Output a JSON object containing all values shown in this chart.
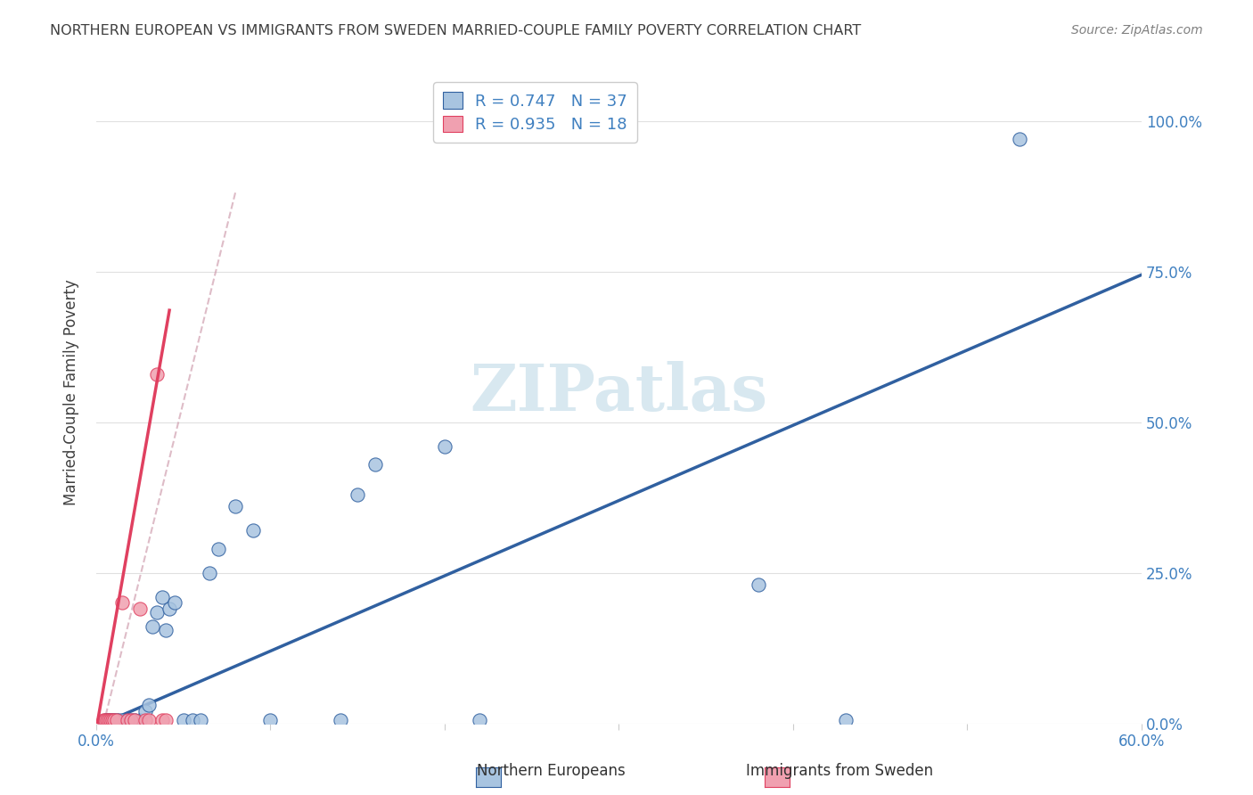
{
  "title": "NORTHERN EUROPEAN VS IMMIGRANTS FROM SWEDEN MARRIED-COUPLE FAMILY POVERTY CORRELATION CHART",
  "source": "Source: ZipAtlas.com",
  "xlabel_label": "",
  "ylabel_label": "Married-Couple Family Poverty",
  "watermark": "ZIPatlas",
  "blue_label": "Northern Europeans",
  "pink_label": "Immigrants from Sweden",
  "blue_R": "0.747",
  "blue_N": "37",
  "pink_R": "0.935",
  "pink_N": "18",
  "xlim": [
    0,
    0.6
  ],
  "ylim": [
    0,
    1.1
  ],
  "xticks": [
    0.0,
    0.1,
    0.2,
    0.3,
    0.4,
    0.5,
    0.6
  ],
  "yticks": [
    0.0,
    0.25,
    0.5,
    0.75,
    1.0
  ],
  "ytick_labels": [
    "0.0%",
    "25.0%",
    "50.0%",
    "75.0%",
    "100.0%"
  ],
  "xtick_labels": [
    "0.0%",
    "",
    "",
    "",
    "",
    "",
    "60.0%"
  ],
  "blue_scatter_x": [
    0.005,
    0.006,
    0.007,
    0.008,
    0.009,
    0.01,
    0.012,
    0.013,
    0.015,
    0.018,
    0.02,
    0.022,
    0.025,
    0.028,
    0.03,
    0.032,
    0.035,
    0.038,
    0.04,
    0.042,
    0.045,
    0.05,
    0.055,
    0.06,
    0.065,
    0.07,
    0.08,
    0.09,
    0.1,
    0.14,
    0.15,
    0.16,
    0.2,
    0.22,
    0.38,
    0.43,
    0.53
  ],
  "blue_scatter_y": [
    0.005,
    0.005,
    0.005,
    0.005,
    0.005,
    0.005,
    0.005,
    0.005,
    0.005,
    0.005,
    0.005,
    0.005,
    0.005,
    0.02,
    0.03,
    0.16,
    0.185,
    0.21,
    0.155,
    0.19,
    0.2,
    0.005,
    0.005,
    0.005,
    0.25,
    0.29,
    0.36,
    0.32,
    0.005,
    0.005,
    0.38,
    0.43,
    0.46,
    0.005,
    0.23,
    0.005,
    0.97
  ],
  "pink_scatter_x": [
    0.004,
    0.005,
    0.006,
    0.007,
    0.008,
    0.009,
    0.01,
    0.012,
    0.015,
    0.018,
    0.02,
    0.022,
    0.025,
    0.028,
    0.03,
    0.035,
    0.038,
    0.04
  ],
  "pink_scatter_y": [
    0.005,
    0.005,
    0.005,
    0.005,
    0.005,
    0.005,
    0.005,
    0.005,
    0.2,
    0.005,
    0.005,
    0.005,
    0.19,
    0.005,
    0.005,
    0.58,
    0.005,
    0.005
  ],
  "blue_color": "#a8c4e0",
  "blue_line_color": "#3060a0",
  "pink_color": "#f0a0b0",
  "pink_line_color": "#e04060",
  "pink_line_dashed_color": "#d0a0b0",
  "background_color": "#ffffff",
  "grid_color": "#e0e0e0",
  "title_color": "#404040",
  "axis_label_color": "#404040",
  "tick_color_right": "#4080c0",
  "watermark_color": "#d8e8f0",
  "legend_text_color": "#4080c0"
}
